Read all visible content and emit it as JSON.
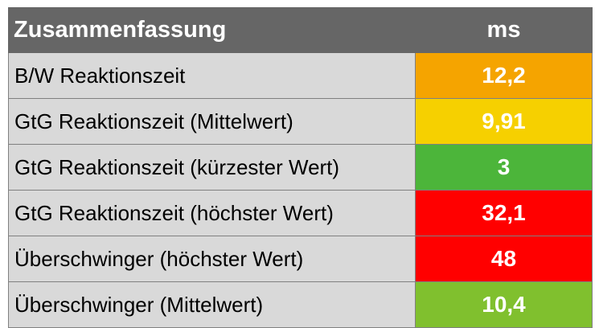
{
  "table": {
    "header": {
      "label": "Zusammenfassung",
      "unit": "ms"
    },
    "rows": [
      {
        "label": "B/W Reaktionszeit",
        "value": "12,2",
        "color": "#f5a400"
      },
      {
        "label": "GtG Reaktionszeit (Mittelwert)",
        "value": "9,91",
        "color": "#f6d000"
      },
      {
        "label": "GtG Reaktionszeit (kürzester Wert)",
        "value": "3",
        "color": "#4cb53a"
      },
      {
        "label": "GtG Reaktionszeit (höchster Wert)",
        "value": "32,1",
        "color": "#ff0000"
      },
      {
        "label": "Überschwinger (höchster Wert)",
        "value": "48",
        "color": "#ff0000"
      },
      {
        "label": "Überschwinger (Mittelwert)",
        "value": "10,4",
        "color": "#80c02e"
      }
    ]
  }
}
